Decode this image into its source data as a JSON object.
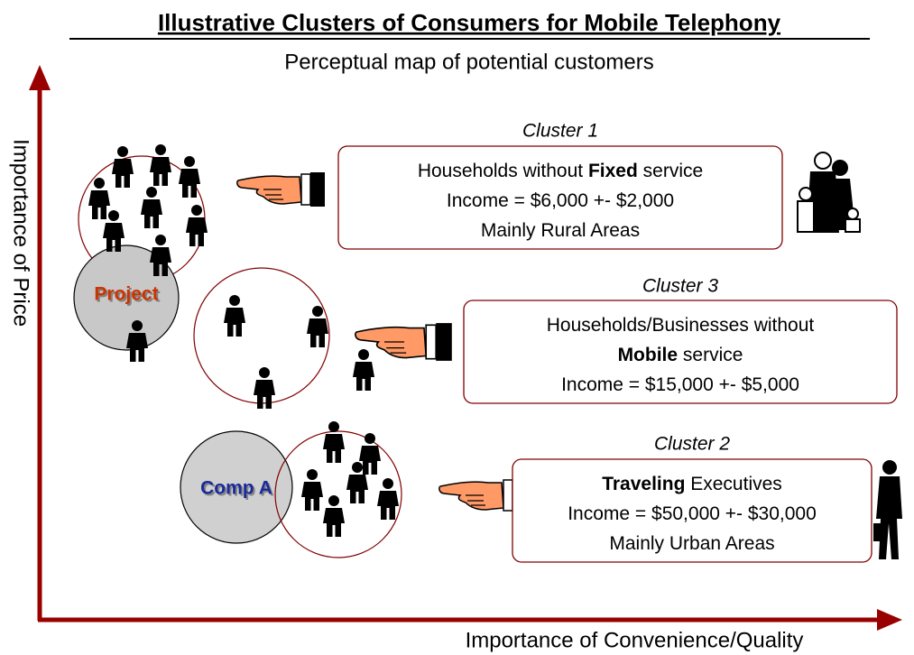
{
  "title": "Illustrative Clusters of Consumers for Mobile Telephony",
  "subtitle": "Perceptual map of potential customers",
  "axes": {
    "y_label": "Importance of Price",
    "x_label": "Importance of Convenience/Quality"
  },
  "circle_labels": {
    "project": "Project",
    "comp_a": "Comp A"
  },
  "clusters": [
    {
      "name": "Cluster 1",
      "lines": [
        [
          {
            "text": "Households without "
          },
          {
            "text": "Fixed",
            "bold": true
          },
          {
            "text": " service"
          }
        ],
        [
          {
            "text": "Income = $6,000 +- $2,000"
          }
        ],
        [
          {
            "text": "Mainly Rural Areas"
          }
        ]
      ]
    },
    {
      "name": "Cluster 3",
      "lines": [
        [
          {
            "text": "Households/Businesses without"
          }
        ],
        [
          {
            "text": "Mobile",
            "bold": true
          },
          {
            "text": " service"
          }
        ],
        [
          {
            "text": "Income = $15,000 +- $5,000"
          }
        ]
      ]
    },
    {
      "name": "Cluster 2",
      "lines": [
        [
          {
            "text": "Traveling",
            "bold": true
          },
          {
            "text": " Executives"
          }
        ],
        [
          {
            "text": "Income = $50,000 +- $30,000"
          }
        ],
        [
          {
            "text": "Mainly Urban Areas"
          }
        ]
      ]
    }
  ]
}
